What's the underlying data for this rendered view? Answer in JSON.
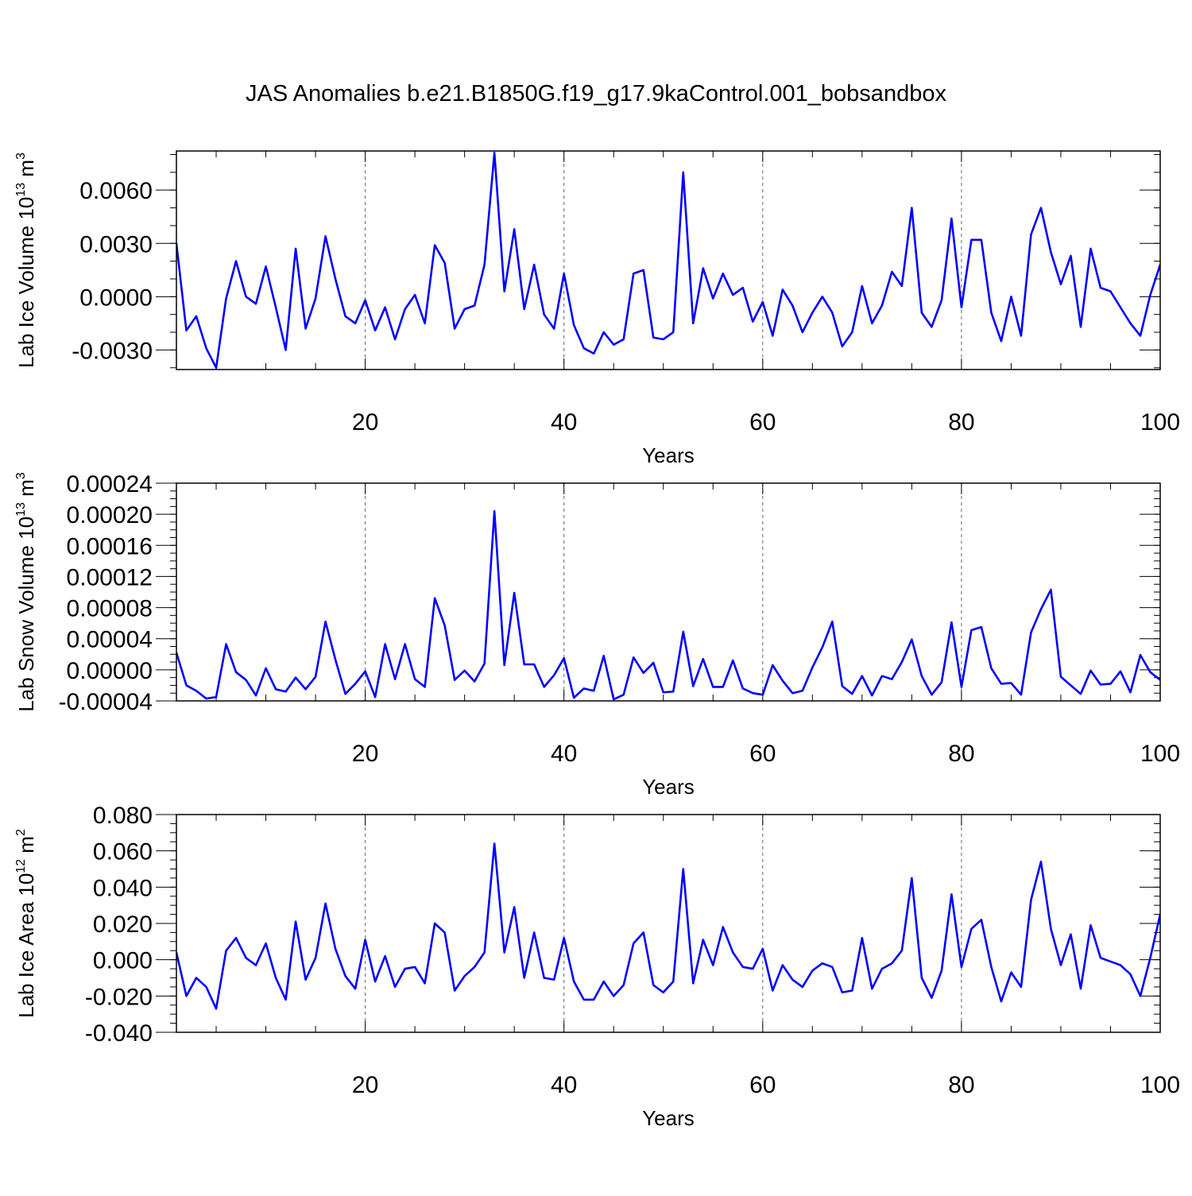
{
  "title": "JAS Anomalies b.e21.B1850G.f19_g17.9kaControl.001_bobsandbox",
  "line_color": "#0000ff",
  "chart_data": [
    {
      "type": "line",
      "title": "JAS Anomalies b.e21.B1850G.f19_g17.9kaControl.001_bobsandbox",
      "xlabel": "Years",
      "ylabel": {
        "base": "Lab Ice Volume 10",
        "sup1": "13",
        "mid": " m",
        "sup2": "3"
      },
      "xlim": [
        1,
        100
      ],
      "ylim": [
        -0.0041,
        0.0082
      ],
      "xticks": [
        20,
        40,
        60,
        80,
        100
      ],
      "xtick_labels": [
        "20",
        "40",
        "60",
        "80",
        "100"
      ],
      "yticks": [
        0.006,
        0.003,
        0.0,
        -0.003
      ],
      "ytick_labels": [
        "0.0060",
        "0.0030",
        "0.0000",
        "-0.0030"
      ],
      "yminor_step": 0.001,
      "grid": "vertical dashed at major x ticks",
      "series": [
        {
          "values": [
            0.003,
            -0.0019,
            -0.0011,
            -0.0029,
            -0.004,
            -0.0001,
            0.002,
            0.0,
            -0.0004,
            0.0017,
            -0.0006,
            -0.003,
            0.0027,
            -0.0018,
            -0.0001,
            0.0034,
            0.001,
            -0.0011,
            -0.0015,
            -0.0002,
            -0.0019,
            -0.0006,
            -0.0024,
            -0.0007,
            0.0001,
            -0.0015,
            0.0029,
            0.0019,
            -0.0018,
            -0.0007,
            -0.0005,
            0.0018,
            0.0081,
            0.0003,
            0.0038,
            -0.0007,
            0.0018,
            -0.001,
            -0.0018,
            0.0013,
            -0.0016,
            -0.0029,
            -0.0032,
            -0.002,
            -0.0027,
            -0.0024,
            0.0013,
            0.0015,
            -0.0023,
            -0.0024,
            -0.002,
            0.007,
            -0.0015,
            0.0016,
            -0.0001,
            0.0013,
            0.0001,
            0.0005,
            -0.0014,
            -0.0003,
            -0.0022,
            0.0004,
            -0.0005,
            -0.002,
            -0.0009,
            0.0,
            -0.0009,
            -0.0028,
            -0.002,
            0.0006,
            -0.0015,
            -0.0005,
            0.0014,
            0.0006,
            0.005,
            -0.0009,
            -0.0017,
            -0.0002,
            0.0044,
            -0.0006,
            0.0032,
            0.0032,
            -0.0009,
            -0.0025,
            0.0,
            -0.0022,
            0.0035,
            0.005,
            0.0025,
            0.0007,
            0.0023,
            -0.0017,
            0.0027,
            0.0005,
            0.0003,
            -0.0006,
            -0.0015,
            -0.0022,
            0.0001,
            0.0018
          ]
        }
      ]
    },
    {
      "type": "line",
      "xlabel": "Years",
      "ylabel": {
        "base": "Lab Snow Volume 10",
        "sup1": "13",
        "mid": " m",
        "sup2": "3"
      },
      "xlim": [
        1,
        100
      ],
      "ylim": [
        -4e-05,
        0.00024
      ],
      "xticks": [
        20,
        40,
        60,
        80,
        100
      ],
      "xtick_labels": [
        "20",
        "40",
        "60",
        "80",
        "100"
      ],
      "yticks": [
        0.00024,
        0.0002,
        0.00016,
        0.00012,
        8e-05,
        4e-05,
        0.0,
        -4e-05
      ],
      "ytick_labels": [
        "0.00024",
        "0.00020",
        "0.00016",
        "0.00012",
        "0.00008",
        "0.00004",
        "0.00000",
        "-0.00004"
      ],
      "yminor_step": 1e-05,
      "grid": "vertical dashed at major x ticks",
      "series": [
        {
          "values": [
            2.2e-05,
            -2e-05,
            -2.7e-05,
            -3.7e-05,
            -3.5e-05,
            3.3e-05,
            -3e-06,
            -1.3e-05,
            -3.3e-05,
            2e-06,
            -2.5e-05,
            -2.8e-05,
            -1e-05,
            -2.5e-05,
            -9e-06,
            6.2e-05,
            1.3e-05,
            -3.1e-05,
            -1.8e-05,
            -2e-06,
            -3.5e-05,
            3.3e-05,
            -1.2e-05,
            3.3e-05,
            -1.2e-05,
            -2.2e-05,
            9.2e-05,
            5.7e-05,
            -1.3e-05,
            -1e-06,
            -1.5e-05,
            8e-06,
            0.000204,
            6e-06,
            9.9e-05,
            7e-06,
            7e-06,
            -2.2e-05,
            -7e-06,
            1.5e-05,
            -3.6e-05,
            -2.4e-05,
            -2.7e-05,
            1.8e-05,
            -3.8e-05,
            -3.2e-05,
            1.6e-05,
            -4e-06,
            9e-06,
            -2.9e-05,
            -2.8e-05,
            4.9e-05,
            -2.1e-05,
            1.4e-05,
            -2.2e-05,
            -2.2e-05,
            1.2e-05,
            -2.4e-05,
            -3e-05,
            -3.2e-05,
            6e-06,
            -1.4e-05,
            -3e-05,
            -2.7e-05,
            3e-06,
            2.9e-05,
            6.2e-05,
            -2.1e-05,
            -3.1e-05,
            -8e-06,
            -3.3e-05,
            -8e-06,
            -1.2e-05,
            1e-05,
            3.9e-05,
            -8e-06,
            -3.2e-05,
            -1.6e-05,
            6.1e-05,
            -2.2e-05,
            5.1e-05,
            5.5e-05,
            2e-06,
            -1.8e-05,
            -1.7e-05,
            -3.2e-05,
            4.8e-05,
            7.8e-05,
            0.000103,
            -9e-06,
            -2e-05,
            -3.1e-05,
            -1e-06,
            -1.9e-05,
            -1.8e-05,
            -2e-06,
            -2.9e-05,
            1.9e-05,
            -3e-06,
            -1.3e-05
          ]
        }
      ]
    },
    {
      "type": "line",
      "xlabel": "Years",
      "ylabel": {
        "base": "Lab Ice Area 10",
        "sup1": "12",
        "mid": " m",
        "sup2": "2"
      },
      "xlim": [
        1,
        100
      ],
      "ylim": [
        -0.04,
        0.08
      ],
      "xticks": [
        20,
        40,
        60,
        80,
        100
      ],
      "xtick_labels": [
        "20",
        "40",
        "60",
        "80",
        "100"
      ],
      "yticks": [
        0.08,
        0.06,
        0.04,
        0.02,
        0.0,
        -0.02,
        -0.04
      ],
      "ytick_labels": [
        "0.080",
        "0.060",
        "0.040",
        "0.020",
        "0.000",
        "-0.020",
        "-0.040"
      ],
      "yminor_step": 0.005,
      "grid": "vertical dashed at major x ticks",
      "series": [
        {
          "values": [
            0.004,
            -0.02,
            -0.01,
            -0.015,
            -0.027,
            0.005,
            0.012,
            0.001,
            -0.003,
            0.009,
            -0.01,
            -0.022,
            0.021,
            -0.011,
            0.001,
            0.031,
            0.006,
            -0.009,
            -0.016,
            0.011,
            -0.012,
            0.002,
            -0.015,
            -0.005,
            -0.004,
            -0.013,
            0.02,
            0.015,
            -0.017,
            -0.009,
            -0.004,
            0.004,
            0.064,
            0.004,
            0.029,
            -0.01,
            0.015,
            -0.01,
            -0.011,
            0.012,
            -0.012,
            -0.022,
            -0.022,
            -0.012,
            -0.02,
            -0.014,
            0.009,
            0.015,
            -0.014,
            -0.018,
            -0.012,
            0.05,
            -0.013,
            0.011,
            -0.003,
            0.018,
            0.004,
            -0.004,
            -0.005,
            0.006,
            -0.017,
            -0.003,
            -0.011,
            -0.015,
            -0.006,
            -0.002,
            -0.004,
            -0.018,
            -0.017,
            0.012,
            -0.016,
            -0.005,
            -0.002,
            0.005,
            0.045,
            -0.01,
            -0.021,
            -0.006,
            0.036,
            -0.004,
            0.017,
            0.022,
            -0.004,
            -0.023,
            -0.007,
            -0.015,
            0.033,
            0.054,
            0.017,
            -0.003,
            0.014,
            -0.016,
            0.019,
            0.001,
            -0.001,
            -0.003,
            -0.008,
            -0.02,
            0.001,
            0.025
          ]
        }
      ]
    }
  ]
}
